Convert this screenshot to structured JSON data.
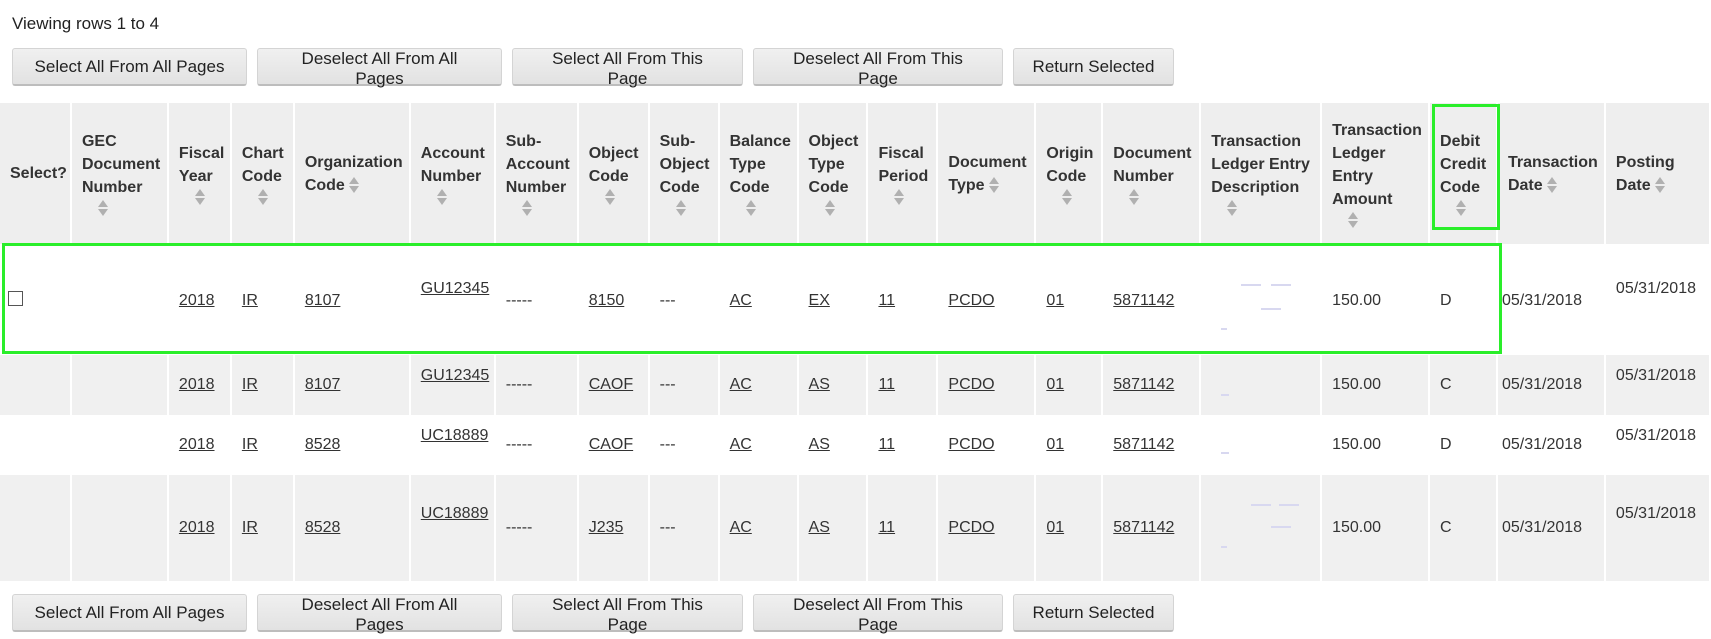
{
  "status_text": "Viewing rows 1 to 4",
  "buttons": {
    "select_all_pages": "Select All From All Pages",
    "deselect_all_pages": "Deselect All From All Pages",
    "select_all_this_page": "Select All From This Page",
    "deselect_all_this_page": "Deselect All From This Page",
    "return_selected": "Return Selected"
  },
  "columns": [
    "Select?",
    "GEC Document Number",
    "Fiscal Year",
    "Chart Code",
    "Organization Code",
    "Account Number",
    "Sub-Account Number",
    "Object Code",
    "Sub-Object Code",
    "Balance Type Code",
    "Object Type Code",
    "Fiscal Period",
    "Document Type",
    "Origin Code",
    "Document Number",
    "Transaction Ledger Entry Description",
    "Transaction Ledger Entry Amount",
    "Debit Credit Code",
    "Transaction Date",
    "Posting Date"
  ],
  "rows": [
    {
      "fiscal_year": "2018",
      "chart": "IR",
      "org": "8107",
      "account": "GU12345",
      "sub_account": "-----",
      "object": "8150",
      "sub_object": "---",
      "balance_type": "AC",
      "object_type": "EX",
      "period": "11",
      "doc_type": "PCDO",
      "origin": "01",
      "doc_number": "5871142",
      "amount": "150.00",
      "dc": "D",
      "trans_date": "05/31/2018",
      "post_date": "05/31/2018"
    },
    {
      "fiscal_year": "2018",
      "chart": "IR",
      "org": "8107",
      "account": "GU12345",
      "sub_account": "-----",
      "object": "CAOF",
      "sub_object": "---",
      "balance_type": "AC",
      "object_type": "AS",
      "period": "11",
      "doc_type": "PCDO",
      "origin": "01",
      "doc_number": "5871142",
      "amount": "150.00",
      "dc": "C",
      "trans_date": "05/31/2018",
      "post_date": "05/31/2018"
    },
    {
      "fiscal_year": "2018",
      "chart": "IR",
      "org": "8528",
      "account": "UC18889",
      "sub_account": "-----",
      "object": "CAOF",
      "sub_object": "---",
      "balance_type": "AC",
      "object_type": "AS",
      "period": "11",
      "doc_type": "PCDO",
      "origin": "01",
      "doc_number": "5871142",
      "amount": "150.00",
      "dc": "D",
      "trans_date": "05/31/2018",
      "post_date": "05/31/2018"
    },
    {
      "fiscal_year": "2018",
      "chart": "IR",
      "org": "8528",
      "account": "UC18889",
      "sub_account": "-----",
      "object": "J235",
      "sub_object": "---",
      "balance_type": "AC",
      "object_type": "AS",
      "period": "11",
      "doc_type": "PCDO",
      "origin": "01",
      "doc_number": "5871142",
      "amount": "150.00",
      "dc": "C",
      "trans_date": "05/31/2018",
      "post_date": "05/31/2018"
    }
  ],
  "colors": {
    "highlight": "#2aee2a",
    "header_bg": "#eeeeee",
    "row_alt_bg": "#f0f0f0"
  }
}
